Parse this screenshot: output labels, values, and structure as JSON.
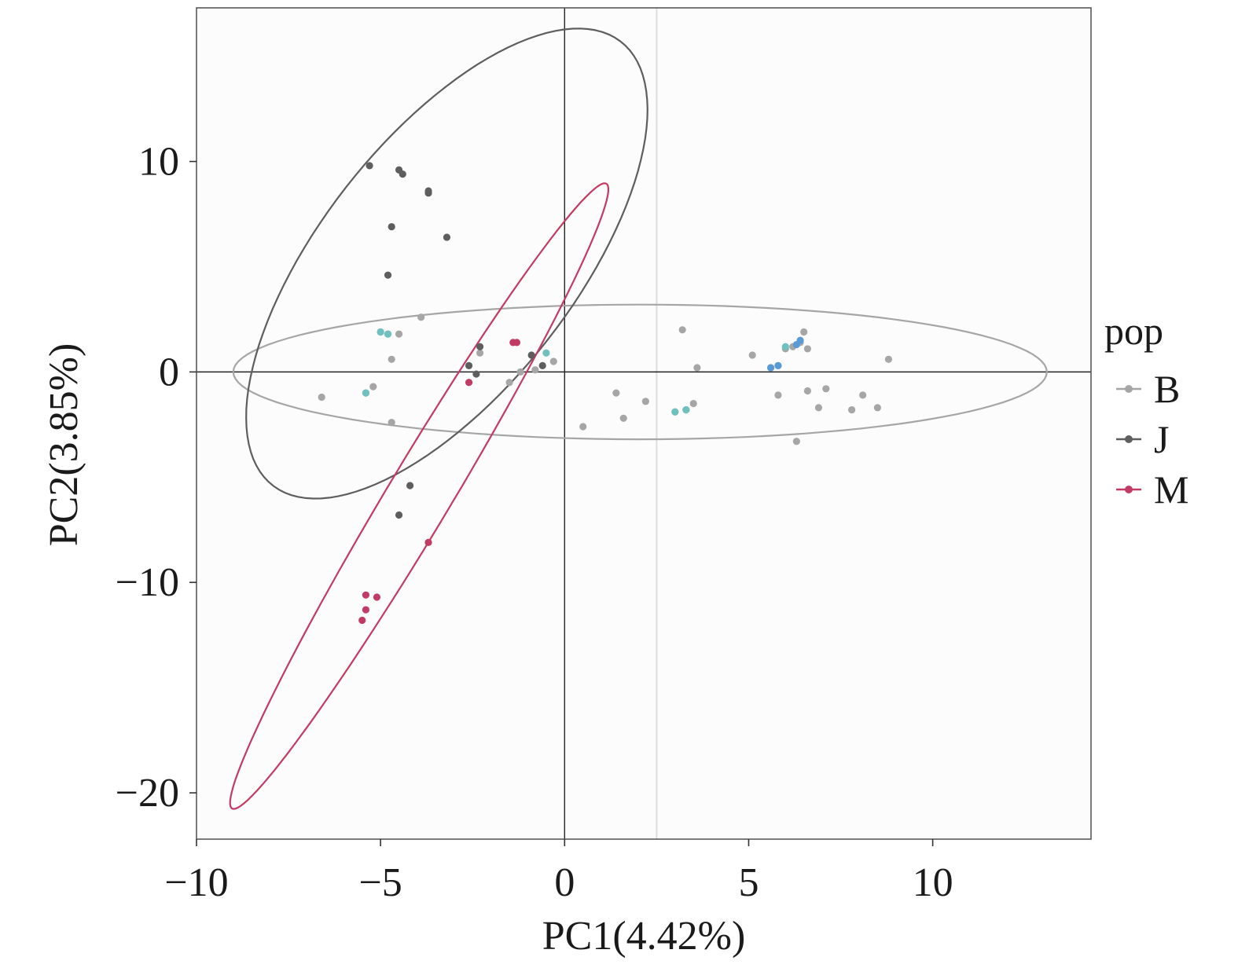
{
  "chart_data": {
    "type": "scatter",
    "xlabel": "PC1(4.42%)",
    "ylabel": "PC2(3.85%)",
    "xlim": [
      -10,
      14.3
    ],
    "ylim": [
      -22.2,
      17.3
    ],
    "x_ticks": [
      -10,
      -5,
      0,
      5,
      10
    ],
    "x_tick_labels": [
      "−10",
      "−5",
      "0",
      "5",
      "10"
    ],
    "y_ticks": [
      -20,
      -10,
      0,
      10
    ],
    "y_tick_labels": [
      "−20",
      "−10",
      "0",
      "10"
    ],
    "grid": false,
    "reference_lines": {
      "x": 0,
      "y": 0
    },
    "legend": {
      "title": "pop",
      "position": "right",
      "entries": [
        "B",
        "J",
        "M"
      ]
    },
    "colors": {
      "B": "#a6a6a6",
      "J": "#5e5e5e",
      "M": "#c23b64",
      "highlight_teal": "#6fc1c0",
      "highlight_blue": "#5b9bd5",
      "faint_line": "#dddddd"
    },
    "series": [
      {
        "name": "B",
        "points": [
          [
            -6.6,
            -1.2
          ],
          [
            -5.4,
            -1.0
          ],
          [
            -5.2,
            -0.7
          ],
          [
            -5.0,
            1.9
          ],
          [
            -4.8,
            1.8
          ],
          [
            -4.7,
            0.6
          ],
          [
            -4.5,
            1.8
          ],
          [
            -4.7,
            -2.4
          ],
          [
            -3.9,
            2.6
          ],
          [
            -2.3,
            0.9
          ],
          [
            -1.5,
            -0.5
          ],
          [
            -1.2,
            0.0
          ],
          [
            -0.8,
            0.1
          ],
          [
            -0.3,
            0.5
          ],
          [
            0.5,
            -2.6
          ],
          [
            1.4,
            -1.0
          ],
          [
            1.6,
            -2.2
          ],
          [
            2.2,
            -1.4
          ],
          [
            3.0,
            -1.9
          ],
          [
            3.2,
            2.0
          ],
          [
            3.3,
            -1.8
          ],
          [
            3.5,
            -1.5
          ],
          [
            3.6,
            0.2
          ],
          [
            5.1,
            0.8
          ],
          [
            5.6,
            0.2
          ],
          [
            5.8,
            0.3
          ],
          [
            5.8,
            -1.1
          ],
          [
            6.0,
            1.1
          ],
          [
            6.2,
            1.2
          ],
          [
            6.4,
            1.4
          ],
          [
            6.3,
            -3.3
          ],
          [
            6.5,
            1.9
          ],
          [
            6.6,
            1.1
          ],
          [
            6.6,
            -0.9
          ],
          [
            6.9,
            -1.7
          ],
          [
            7.1,
            -0.8
          ],
          [
            7.8,
            -1.8
          ],
          [
            8.1,
            -1.1
          ],
          [
            8.5,
            -1.7
          ],
          [
            8.8,
            0.6
          ]
        ],
        "ellipse": {
          "center": [
            2.05,
            0.0
          ],
          "semi_axis_a": 11.05,
          "semi_axis_b": 3.2,
          "angle_deg": 0.0
        }
      },
      {
        "name": "J",
        "points": [
          [
            -5.3,
            9.8
          ],
          [
            -4.5,
            9.6
          ],
          [
            -4.4,
            9.4
          ],
          [
            -3.7,
            8.6
          ],
          [
            -3.7,
            8.5
          ],
          [
            -4.7,
            6.9
          ],
          [
            -3.2,
            6.4
          ],
          [
            -4.8,
            4.6
          ],
          [
            -2.6,
            0.3
          ],
          [
            -2.3,
            1.2
          ],
          [
            -2.4,
            -0.1
          ],
          [
            -0.9,
            0.8
          ],
          [
            -0.6,
            0.3
          ],
          [
            -4.2,
            -5.4
          ],
          [
            -4.5,
            -6.8
          ]
        ],
        "ellipse": {
          "center": [
            -3.2,
            5.15
          ],
          "semi_axis_a": 11.8,
          "semi_axis_b": 3.9,
          "angle_deg": 70
        }
      },
      {
        "name": "M",
        "points": [
          [
            -1.4,
            1.4
          ],
          [
            -1.3,
            1.4
          ],
          [
            -2.6,
            -0.5
          ],
          [
            -3.7,
            -8.1
          ],
          [
            -5.4,
            -10.6
          ],
          [
            -5.1,
            -10.7
          ],
          [
            -5.4,
            -11.3
          ],
          [
            -5.5,
            -11.8
          ]
        ],
        "ellipse": {
          "center": [
            -3.95,
            -5.9
          ],
          "semi_axis_a": 15.7,
          "semi_axis_b": 0.95,
          "angle_deg": 71.2
        }
      }
    ],
    "highlighted_points": [
      {
        "x": -5.0,
        "y": 1.9,
        "color": "#6fc1c0"
      },
      {
        "x": -4.8,
        "y": 1.8,
        "color": "#6fc1c0"
      },
      {
        "x": -5.4,
        "y": -1.0,
        "color": "#6fc1c0"
      },
      {
        "x": -0.5,
        "y": 0.9,
        "color": "#6fc1c0"
      },
      {
        "x": 3.0,
        "y": -1.9,
        "color": "#6fc1c0"
      },
      {
        "x": 3.3,
        "y": -1.8,
        "color": "#6fc1c0"
      },
      {
        "x": 6.0,
        "y": 1.2,
        "color": "#6fc1c0"
      },
      {
        "x": 5.6,
        "y": 0.2,
        "color": "#5b9bd5"
      },
      {
        "x": 5.8,
        "y": 0.3,
        "color": "#5b9bd5"
      },
      {
        "x": 6.3,
        "y": 1.3,
        "color": "#5b9bd5"
      },
      {
        "x": 6.4,
        "y": 1.5,
        "color": "#5b9bd5"
      }
    ],
    "faint_vertical_line_x": 2.5
  }
}
